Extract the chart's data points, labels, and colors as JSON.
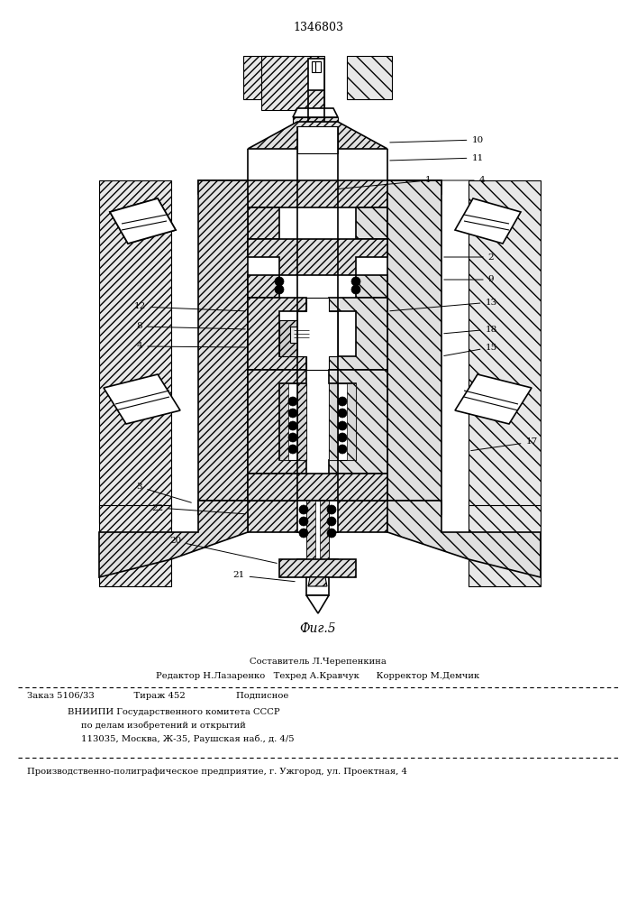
{
  "patent_number": "1346803",
  "fig_caption": "Фиг.5",
  "background_color": "#ffffff",
  "line_color": "#000000",
  "footer": {
    "line1": "Составитель Л.Черепенкина",
    "line2": "Редактор Н.Лазаренко   Техред А.Кравчук      Корректор М.Демчик",
    "line3": "Заказ 5106/33              Тираж 452                  Подписное",
    "line4": "ВНИИПИ Государственного комитета СССР",
    "line5": "по делам изобретений и открытий",
    "line6": "113035, Москва, Ж-35, Раушская наб., д. 4/5",
    "line7": "Производственно-полиграфическое предприятие, г. Ужгород, ул. Проектная, 4"
  }
}
